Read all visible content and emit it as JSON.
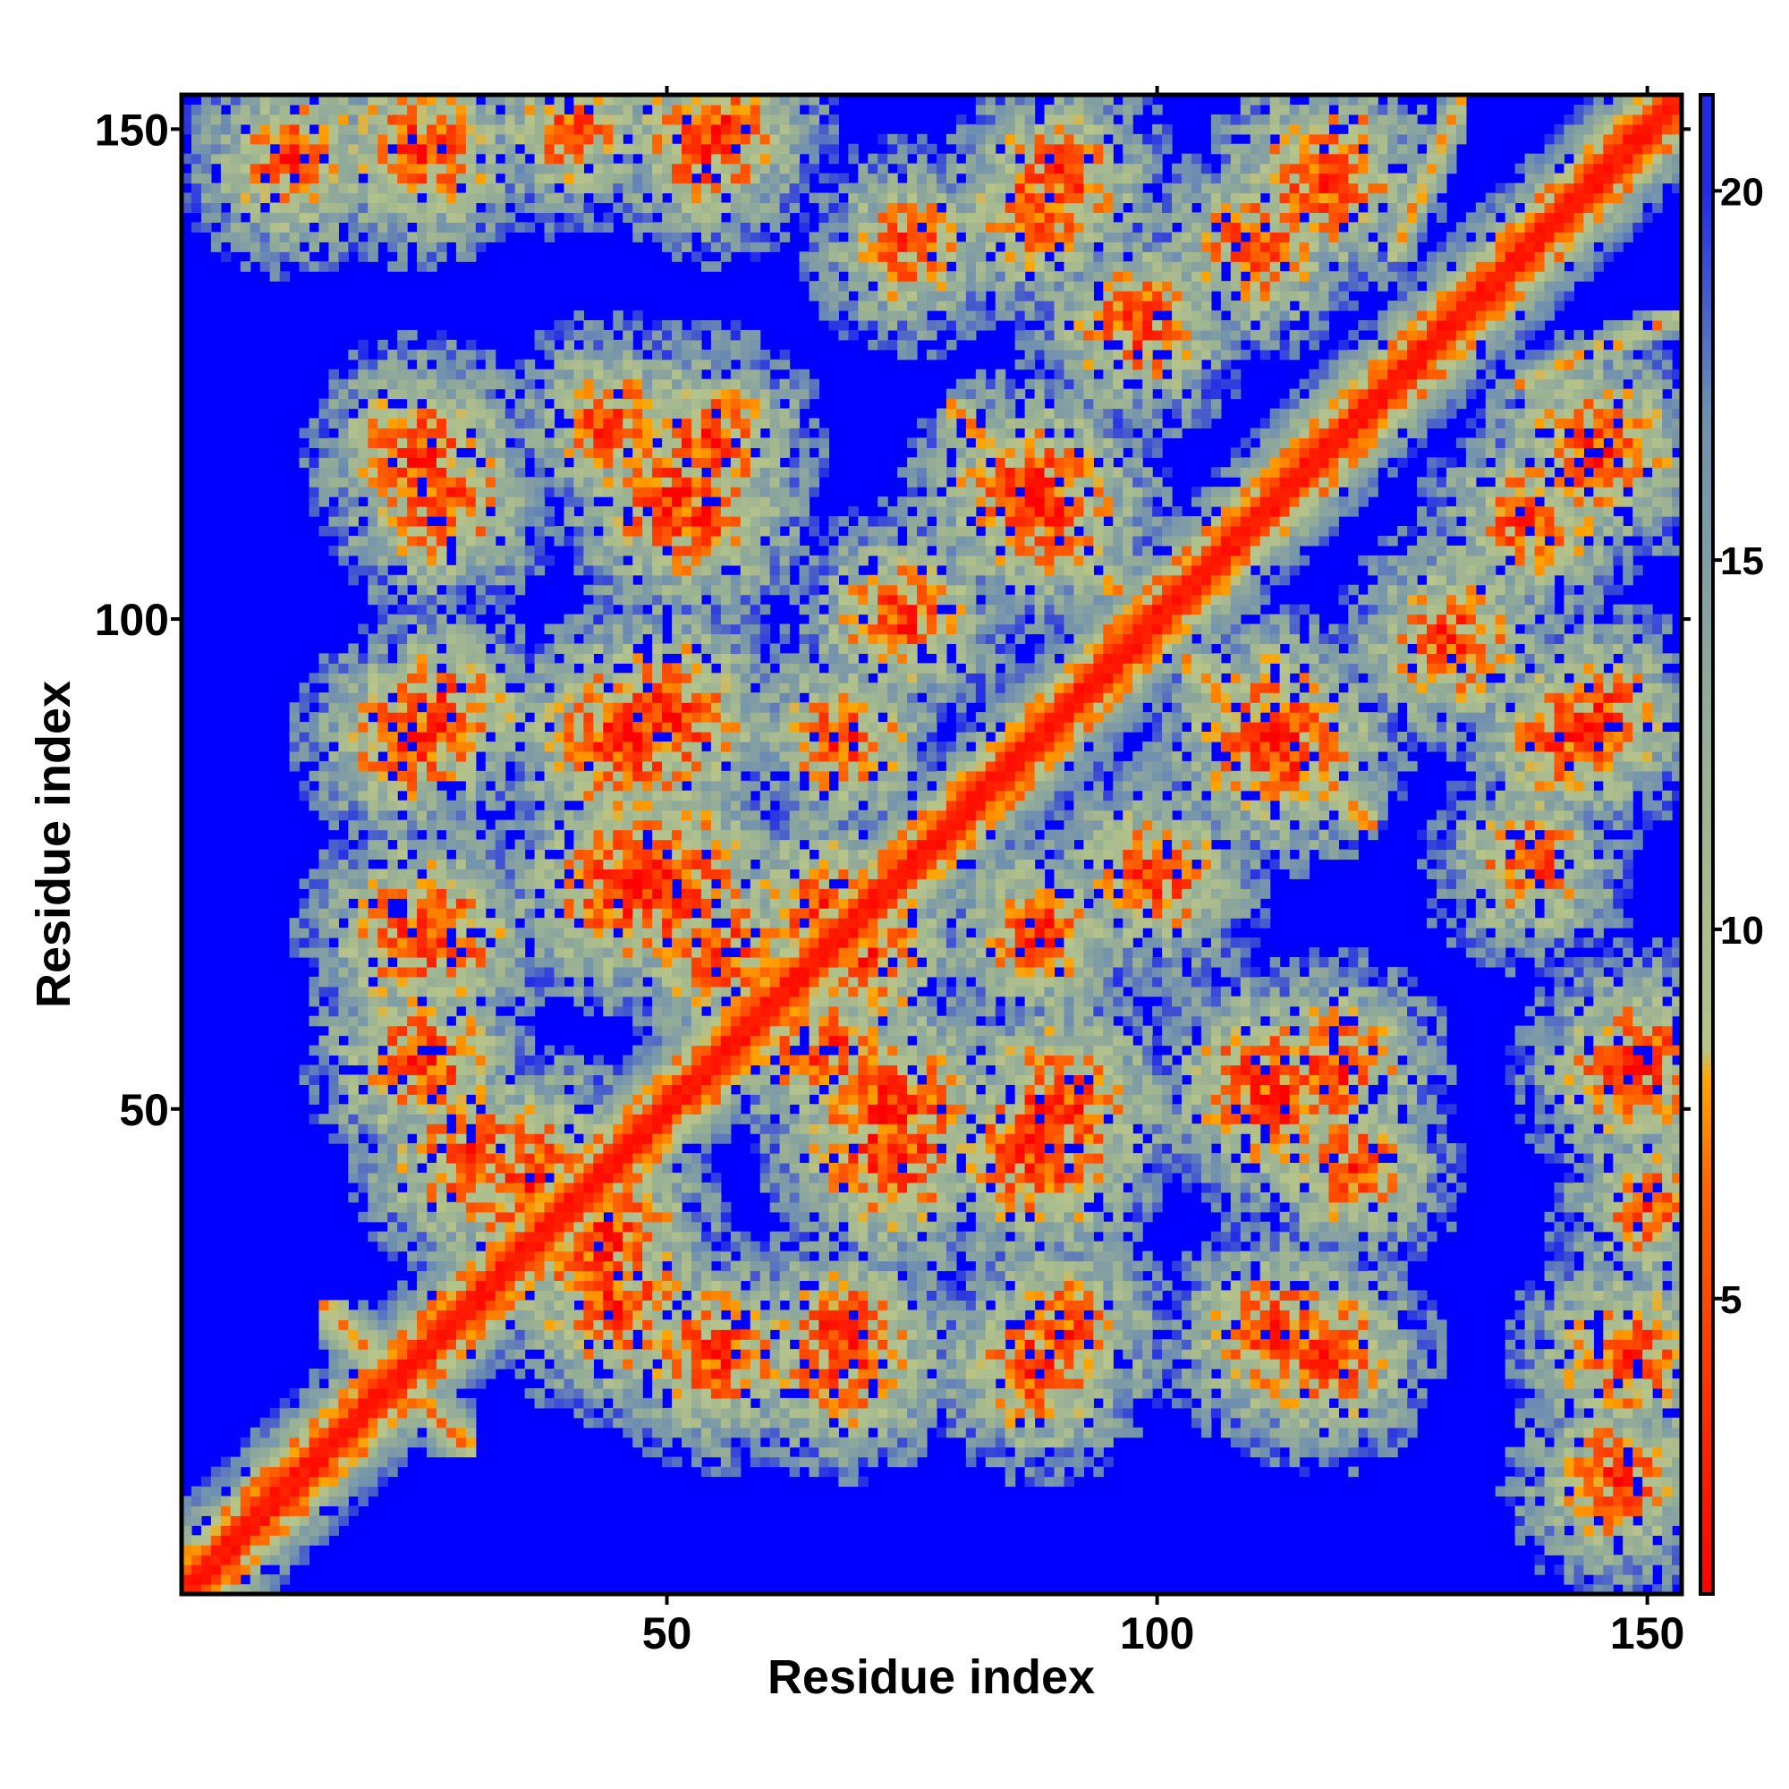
{
  "chart_data": {
    "type": "heatmap",
    "title": "",
    "xlabel": "Residue index",
    "ylabel": "Residue index",
    "n_residues": 153,
    "xlim": [
      1,
      153
    ],
    "ylim": [
      1,
      153
    ],
    "x_ticks": [
      {
        "value": 50,
        "label": "50"
      },
      {
        "value": 100,
        "label": "100"
      },
      {
        "value": 150,
        "label": "150"
      }
    ],
    "y_ticks": [
      {
        "value": 50,
        "label": "50"
      },
      {
        "value": 100,
        "label": "100"
      },
      {
        "value": 150,
        "label": "150"
      }
    ],
    "colorbar": {
      "range": [
        1,
        21.3
      ],
      "ticks": [
        {
          "value": 5,
          "label": "5"
        },
        {
          "value": 10,
          "label": "10"
        },
        {
          "value": 15,
          "label": "15"
        },
        {
          "value": 20,
          "label": "20"
        }
      ],
      "stops": [
        {
          "value": 1,
          "color": "#ff0000"
        },
        {
          "value": 6.5,
          "color": "#ff6400"
        },
        {
          "value": 8.0,
          "color": "#ffa500"
        },
        {
          "value": 8.4,
          "color": "#b7c48a"
        },
        {
          "value": 12,
          "color": "#9bb293"
        },
        {
          "value": 17,
          "color": "#6f8fb0"
        },
        {
          "value": 21.3,
          "color": "#0000ff"
        }
      ]
    },
    "saturated_color": "#0000ff",
    "cutoff": 20,
    "diagonal_band_max_sep": 4,
    "secondary_structure_bands": [
      {
        "type": "antiparallel",
        "i_range": [
          15,
          30
        ],
        "j_range": [
          15,
          30
        ]
      },
      {
        "type": "parallel",
        "i_range": [
          113,
          121
        ],
        "j_range": [
          141,
          151
        ]
      },
      {
        "type": "parallel",
        "i_range": [
          124,
          131
        ],
        "j_range": [
          137,
          153
        ]
      },
      {
        "type": "antiparallel",
        "i_range": [
          110,
          122
        ],
        "j_range": [
          79,
          90
        ]
      },
      {
        "type": "antiparallel",
        "i_range": [
          82,
          96
        ],
        "j_range": [
          103,
          115
        ]
      }
    ],
    "contact_clusters": [
      {
        "i": 12,
        "j": 147,
        "strength": 0.55
      },
      {
        "i": 55,
        "j": 150,
        "strength": 0.6
      },
      {
        "i": 88,
        "j": 142,
        "strength": 0.55
      },
      {
        "i": 117,
        "j": 145,
        "strength": 0.65
      },
      {
        "i": 27,
        "j": 112,
        "strength": 0.6
      },
      {
        "i": 51,
        "j": 112,
        "strength": 0.7
      },
      {
        "i": 87,
        "j": 113,
        "strength": 0.7
      },
      {
        "i": 24,
        "j": 88,
        "strength": 0.6
      },
      {
        "i": 46,
        "j": 88,
        "strength": 0.8
      },
      {
        "i": 68,
        "j": 88,
        "strength": 0.5
      },
      {
        "i": 112,
        "j": 88,
        "strength": 0.75
      },
      {
        "i": 130,
        "j": 98,
        "strength": 0.55
      },
      {
        "i": 145,
        "j": 90,
        "strength": 0.55
      },
      {
        "i": 25,
        "j": 68,
        "strength": 0.7
      },
      {
        "i": 46,
        "j": 73,
        "strength": 0.8
      },
      {
        "i": 66,
        "j": 70,
        "strength": 0.6
      },
      {
        "i": 100,
        "j": 74,
        "strength": 0.55
      },
      {
        "i": 66,
        "j": 56,
        "strength": 0.55
      },
      {
        "i": 73,
        "j": 50,
        "strength": 0.8
      },
      {
        "i": 90,
        "j": 50,
        "strength": 0.75
      },
      {
        "i": 110,
        "j": 54,
        "strength": 0.5
      },
      {
        "i": 118,
        "j": 54,
        "strength": 0.6
      },
      {
        "i": 148,
        "j": 54,
        "strength": 0.55
      },
      {
        "i": 30,
        "j": 45,
        "strength": 0.65
      },
      {
        "i": 38,
        "j": 40,
        "strength": 0.8
      },
      {
        "i": 43,
        "j": 37,
        "strength": 0.75
      },
      {
        "i": 55,
        "j": 25,
        "strength": 0.6
      },
      {
        "i": 68,
        "j": 27,
        "strength": 0.6
      },
      {
        "i": 90,
        "j": 27,
        "strength": 0.6
      },
      {
        "i": 117,
        "j": 25,
        "strength": 0.6
      },
      {
        "i": 148,
        "j": 25,
        "strength": 0.6
      },
      {
        "i": 44,
        "j": 120,
        "strength": 0.45
      },
      {
        "i": 75,
        "j": 138,
        "strength": 0.45
      },
      {
        "i": 138,
        "j": 110,
        "strength": 0.5
      },
      {
        "i": 150,
        "j": 40,
        "strength": 0.4
      }
    ]
  }
}
